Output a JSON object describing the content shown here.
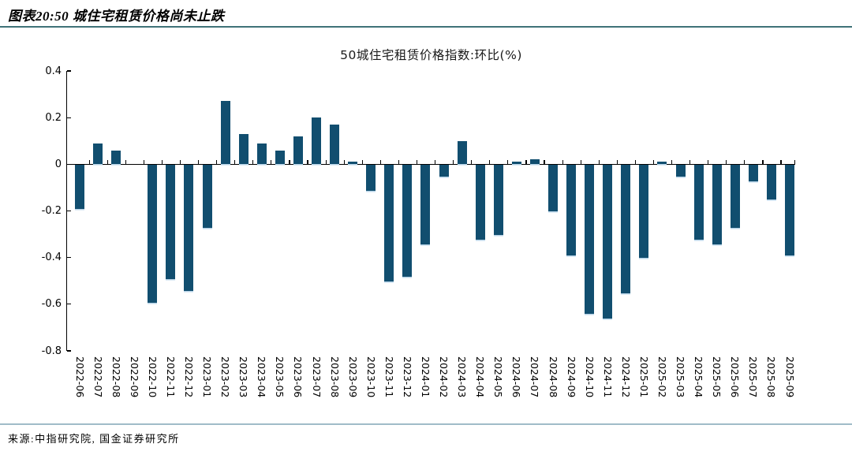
{
  "header": {
    "title": "图表20:50 城住宅租赁价格尚未止跌"
  },
  "source": {
    "text": "来源:中指研究院, 国金证券研究所"
  },
  "colors": {
    "header_rule": "#3F7278",
    "footer_rule": "#A0BCC8",
    "bar": "#114E6F",
    "bar_edge": "#B8D4E8",
    "axis": "#000000"
  },
  "chart_data": {
    "type": "bar",
    "title": "50城住宅租赁价格指数:环比(%)",
    "categories": [
      "2022-06",
      "2022-07",
      "2022-08",
      "2022-09",
      "2022-10",
      "2022-11",
      "2022-12",
      "2023-01",
      "2023-02",
      "2023-03",
      "2023-04",
      "2023-05",
      "2023-06",
      "2023-07",
      "2023-08",
      "2023-09",
      "2023-10",
      "2023-11",
      "2023-12",
      "2024-01",
      "2024-02",
      "2024-03",
      "2024-04",
      "2024-05",
      "2024-06",
      "2024-07",
      "2024-08",
      "2024-09",
      "2024-10",
      "2024-11",
      "2024-12",
      "2025-01",
      "2025-02",
      "2025-03",
      "2025-04",
      "2025-05",
      "2025-06",
      "2025-07",
      "2025-08",
      "2025-09"
    ],
    "values": [
      -0.19,
      0.09,
      0.06,
      0.0,
      -0.59,
      -0.49,
      -0.54,
      -0.27,
      0.27,
      0.13,
      0.09,
      0.06,
      0.12,
      0.2,
      0.17,
      0.01,
      -0.11,
      -0.5,
      -0.48,
      -0.34,
      -0.05,
      0.1,
      -0.32,
      -0.3,
      0.01,
      0.02,
      -0.2,
      -0.39,
      -0.64,
      -0.66,
      -0.55,
      -0.4,
      0.01,
      -0.05,
      -0.32,
      -0.34,
      -0.27,
      -0.07,
      -0.15,
      -0.39
    ],
    "xlabel": "",
    "ylabel": "",
    "ylim": [
      -0.8,
      0.4
    ],
    "ytick_labels": [
      "0.4",
      "0.2",
      "0",
      "-0.2",
      "-0.4",
      "-0.6",
      "-0.8"
    ],
    "ytick_values": [
      0.4,
      0.2,
      0,
      -0.2,
      -0.4,
      -0.6,
      -0.8
    ],
    "grid": false,
    "legend": "none",
    "bar_color": "#114E6F"
  }
}
